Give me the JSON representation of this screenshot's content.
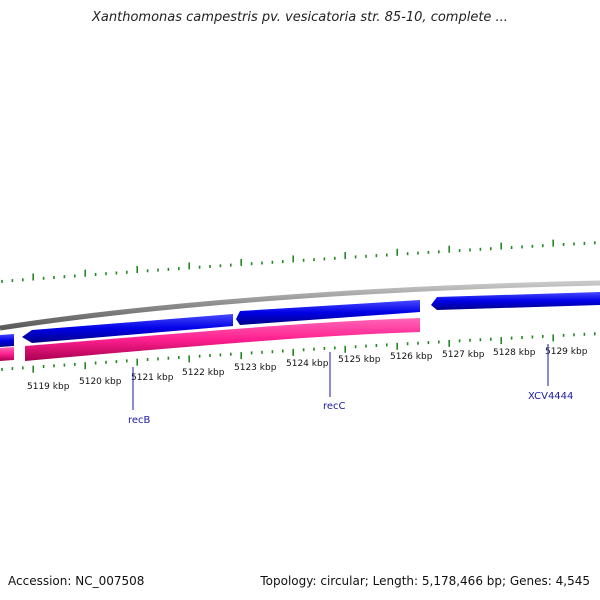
{
  "title": "Xanthomonas campestris pv. vesicatoria str. 85-10, complete ...",
  "footer": {
    "accession": "Accession: NC_007508",
    "summary": "Topology: circular; Length: 5,178,466 bp; Genes: 4,545"
  },
  "colors": {
    "backbone": "#8a8a8a",
    "forward_genes": "#0000ee",
    "reverse_genes": "#ff1f8f",
    "ticks": "#228822",
    "gene_label": "#1a1aa8",
    "kbp_label": "#111111"
  },
  "scale_labels": [
    "5119 kbp",
    "5120 kbp",
    "5121 kbp",
    "5122 kbp",
    "5123 kbp",
    "5124 kbp",
    "5125 kbp",
    "5126 kbp",
    "5127 kbp",
    "5128 kbp",
    "5129 kbp"
  ],
  "gene_labels": [
    "recB",
    "recC",
    "XCV4444"
  ]
}
